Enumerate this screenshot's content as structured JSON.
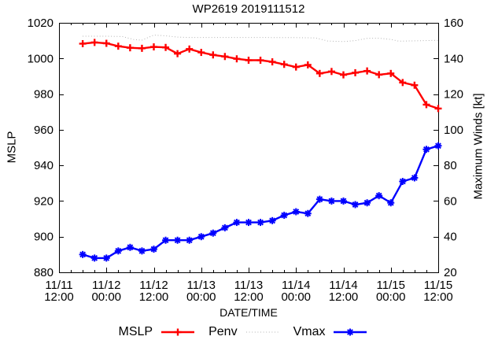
{
  "colors": {
    "mslp": "#ff0000",
    "penv": "#b3b3b3",
    "vmax": "#0000ff",
    "axis": "#000000",
    "background": "#ffffff"
  },
  "legend": {
    "items": [
      {
        "label": "MSLP",
        "series": "mslp"
      },
      {
        "label": "Penv",
        "series": "penv"
      },
      {
        "label": "Vmax",
        "series": "vmax"
      }
    ]
  },
  "chart_data": {
    "type": "line",
    "title": "WP2619 2019111512",
    "xlabel": "DATE/TIME",
    "ylabel_left": "MSLP",
    "ylabel_right": "Maximum Winds [kt]",
    "grid": false,
    "legend_position": "bottom-center",
    "xlim_hours": [
      0,
      96
    ],
    "x_minor_step_hours": 3,
    "x_major_step_hours": 12,
    "x_major_ticks": [
      {
        "hour": 0,
        "date": "11/11",
        "time": "12:00"
      },
      {
        "hour": 12,
        "date": "11/12",
        "time": "00:00"
      },
      {
        "hour": 24,
        "date": "11/12",
        "time": "12:00"
      },
      {
        "hour": 36,
        "date": "11/13",
        "time": "00:00"
      },
      {
        "hour": 48,
        "date": "11/13",
        "time": "12:00"
      },
      {
        "hour": 60,
        "date": "11/14",
        "time": "00:00"
      },
      {
        "hour": 72,
        "date": "11/14",
        "time": "12:00"
      },
      {
        "hour": 84,
        "date": "11/15",
        "time": "00:00"
      },
      {
        "hour": 96,
        "date": "11/15",
        "time": "12:00"
      }
    ],
    "ylim_left": [
      880,
      1020
    ],
    "yticks_left": [
      880,
      900,
      920,
      940,
      960,
      980,
      1000,
      1020
    ],
    "ylim_right": [
      20,
      160
    ],
    "yticks_right": [
      20,
      40,
      60,
      80,
      100,
      120,
      140,
      160
    ],
    "series": [
      {
        "id": "penv",
        "name": "Penv",
        "axis": "left",
        "style": "dotted",
        "marker": "none",
        "color": "#b3b3b3",
        "width": 1,
        "x_hours": [
          6,
          12,
          16,
          19,
          21,
          24,
          27,
          30,
          33,
          48,
          60,
          65,
          68,
          72,
          75,
          78,
          81,
          84,
          86,
          90,
          96
        ],
        "values": [
          1012.5,
          1012.5,
          1012.3,
          1010.6,
          1010.3,
          1013.1,
          1012.7,
          1012.0,
          1011.8,
          1011.8,
          1011.7,
          1011.5,
          1009.8,
          1009.5,
          1010.0,
          1011.3,
          1011.4,
          1010.7,
          1009.7,
          1009.9,
          1010.2
        ]
      },
      {
        "id": "mslp",
        "name": "MSLP",
        "axis": "left",
        "style": "solid",
        "marker": "plus",
        "color": "#ff0000",
        "width": 2.4,
        "x_hours": [
          6,
          9,
          12,
          15,
          18,
          21,
          24,
          27,
          30,
          33,
          36,
          39,
          42,
          45,
          48,
          51,
          54,
          57,
          60,
          63,
          66,
          69,
          72,
          75,
          78,
          81,
          84,
          87,
          90,
          93,
          96
        ],
        "values": [
          1008.3,
          1009.0,
          1008.5,
          1006.9,
          1006.0,
          1005.7,
          1006.5,
          1006.2,
          1002.7,
          1005.3,
          1003.4,
          1002.0,
          1001.1,
          999.8,
          999.0,
          999.0,
          998.1,
          996.7,
          995.2,
          996.4,
          991.6,
          992.7,
          990.8,
          992.0,
          993.0,
          990.9,
          991.6,
          986.5,
          985.0,
          974.1,
          971.9
        ]
      },
      {
        "id": "vmax",
        "name": "Vmax",
        "axis": "right",
        "style": "solid",
        "marker": "asterisk",
        "color": "#0000ff",
        "width": 2.4,
        "x_hours": [
          6,
          9,
          12,
          15,
          18,
          21,
          24,
          27,
          30,
          33,
          36,
          39,
          42,
          45,
          48,
          51,
          54,
          57,
          60,
          63,
          66,
          69,
          72,
          75,
          78,
          81,
          84,
          87,
          90,
          93,
          96
        ],
        "values": [
          30,
          28,
          28,
          32,
          34,
          32,
          33,
          38,
          38,
          38,
          40,
          42,
          45,
          48,
          48,
          48,
          49,
          52,
          54,
          53,
          61,
          60,
          60,
          58,
          59,
          63,
          59,
          71,
          73,
          89,
          91
        ]
      }
    ]
  }
}
